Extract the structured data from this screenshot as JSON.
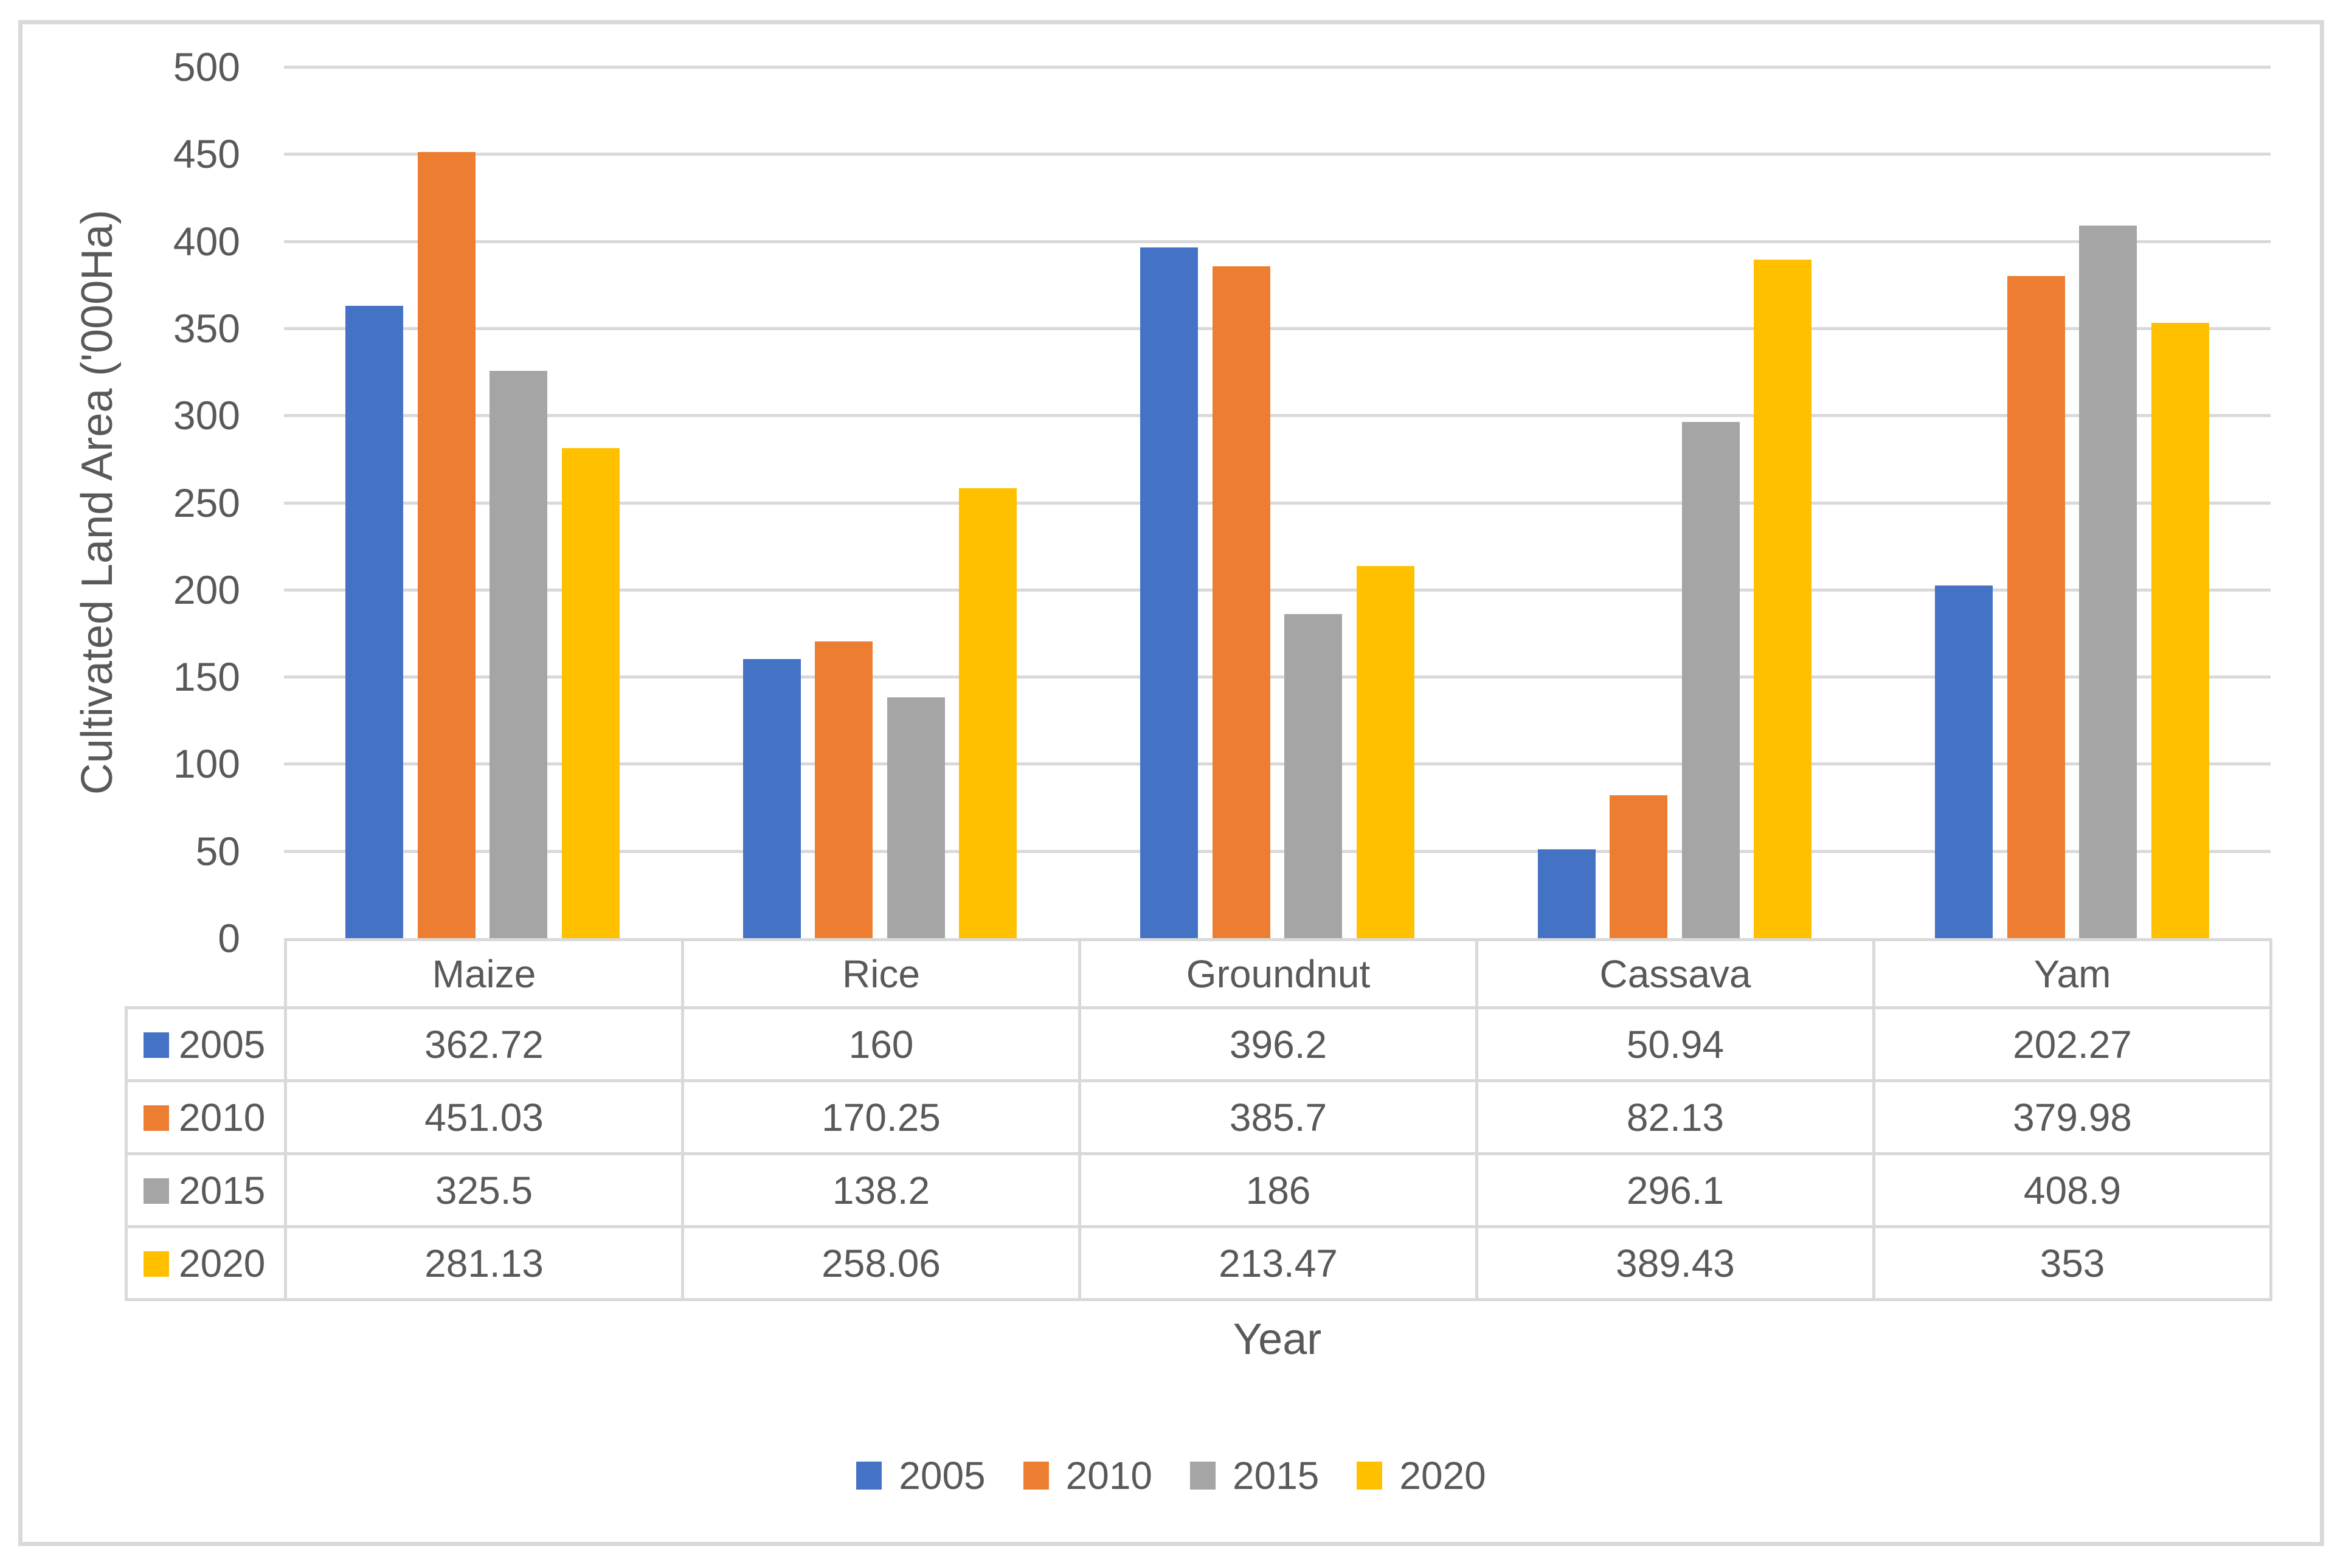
{
  "chart_data": {
    "type": "bar",
    "title": "",
    "categories": [
      "Maize",
      "Rice",
      "Groundnut",
      "Cassava",
      "Yam"
    ],
    "series": [
      {
        "name": "2005",
        "color": "#4472C4",
        "values": [
          362.72,
          160,
          396.2,
          50.94,
          202.27
        ]
      },
      {
        "name": "2010",
        "color": "#ED7D31",
        "values": [
          451.03,
          170.25,
          385.7,
          82.13,
          379.98
        ]
      },
      {
        "name": "2015",
        "color": "#A5A5A5",
        "values": [
          325.5,
          138.2,
          186,
          296.1,
          408.9
        ]
      },
      {
        "name": "2020",
        "color": "#FFC000",
        "values": [
          281.13,
          258.06,
          213.47,
          389.43,
          353
        ]
      }
    ],
    "xlabel": "Year",
    "ylabel": "Cultivated Land Area ('000Ha)",
    "ylim": [
      0,
      500
    ],
    "ytick_step": 50,
    "y_tick_labels": [
      "0",
      "50",
      "100",
      "150",
      "200",
      "250",
      "300",
      "350",
      "400",
      "450",
      "500"
    ],
    "grid": true,
    "legend_position": "bottom",
    "data_table": true,
    "table_values_text": [
      [
        "362.72",
        "160",
        "396.2",
        "50.94",
        "202.27"
      ],
      [
        "451.03",
        "170.25",
        "385.7",
        "82.13",
        "379.98"
      ],
      [
        "325.5",
        "138.2",
        "186",
        "296.1",
        "408.9"
      ],
      [
        "281.13",
        "258.06",
        "213.47",
        "389.43",
        "353"
      ]
    ]
  },
  "colors": {
    "background": "#FFFFFF",
    "frame_border": "#D9D9D9",
    "gridline": "#D9D9D9",
    "table_border": "#D9D9D9",
    "text": "#595959"
  }
}
